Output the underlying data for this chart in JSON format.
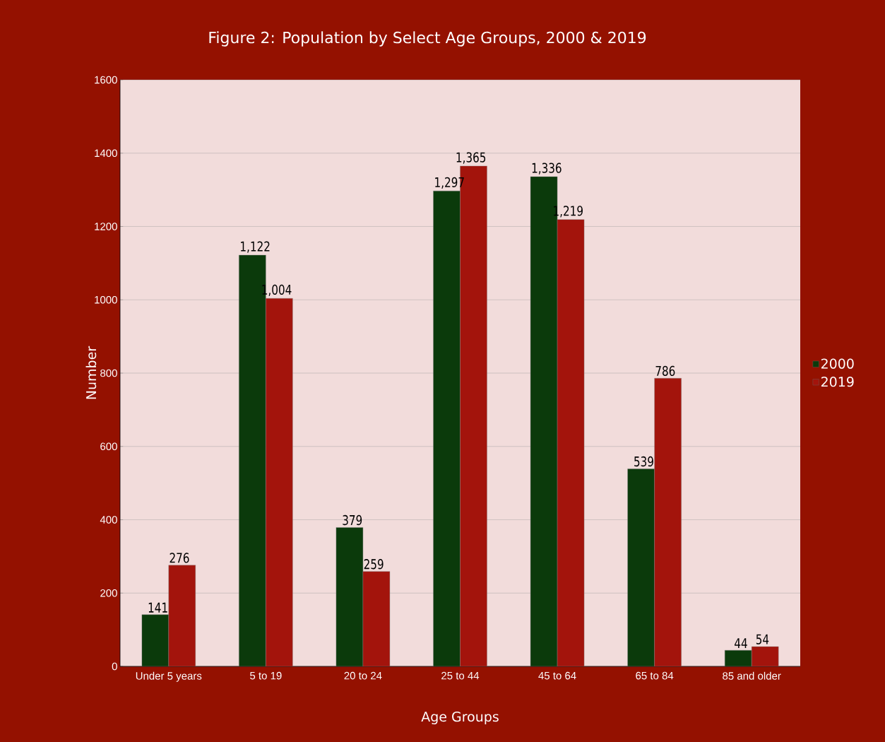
{
  "chart_data": {
    "type": "bar",
    "title": "Figure 2: Population by Select Age Groups, 2000 & 2019",
    "xlabel": "Age Groups",
    "ylabel": "Number",
    "categories": [
      "Under 5 years",
      "5 to 19",
      "20 to 24",
      "25 to 44",
      "45 to 64",
      "65 to 84",
      "85 and older"
    ],
    "series": [
      {
        "name": "2000",
        "color": "#0b3a0b",
        "values": [
          141,
          1122,
          379,
          1297,
          1336,
          539,
          44
        ],
        "value_labels": [
          "141",
          "1,122",
          "379",
          "1,297",
          "1,336",
          "539",
          "44"
        ]
      },
      {
        "name": "2019",
        "color": "#a3140c",
        "values": [
          276,
          1004,
          259,
          1365,
          1219,
          786,
          54
        ],
        "value_labels": [
          "276",
          "1,004",
          "259",
          "1,365",
          "1,219",
          "786",
          "54"
        ]
      }
    ],
    "ylim": [
      0,
      1600
    ],
    "yticks": [
      0,
      200,
      400,
      600,
      800,
      1000,
      1200,
      1400,
      1600
    ],
    "grid": "y",
    "legend": "right"
  }
}
